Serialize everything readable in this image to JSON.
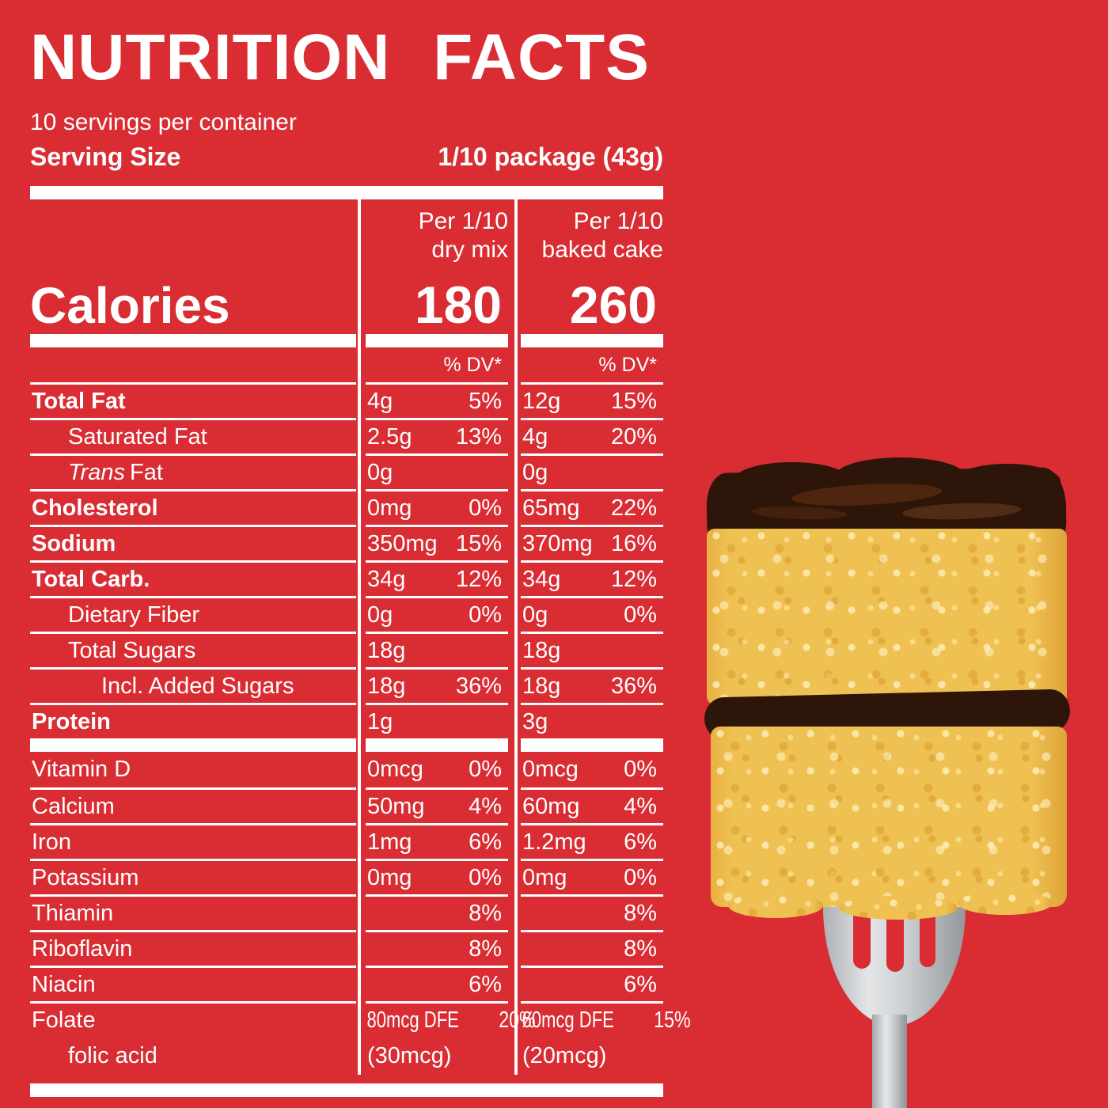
{
  "colors": {
    "background": "#d92d33",
    "text": "#ffffff",
    "sponge": "#efc052",
    "frosting": "#2d150a",
    "fork": "#c9ccce"
  },
  "header": {
    "title": "NUTRITION FACTS",
    "servings_per_container": "10 servings per container",
    "serving_size_label": "Serving Size",
    "serving_size_value": "1/10 package (43g)"
  },
  "table": {
    "calories_label": "Calories",
    "columns": [
      {
        "header_line1": "Per 1/10",
        "header_line2": "dry mix",
        "calories": "180",
        "dv_header": "% DV*"
      },
      {
        "header_line1": "Per 1/10",
        "header_line2": "baked cake",
        "calories": "260",
        "dv_header": "% DV*"
      }
    ],
    "rows": [
      {
        "label": "Total Fat",
        "bold": true,
        "indent": 0,
        "cells": [
          {
            "amount": "4g",
            "dv": "5%"
          },
          {
            "amount": "12g",
            "dv": "15%"
          }
        ]
      },
      {
        "label": "Saturated Fat",
        "bold": false,
        "indent": 1,
        "cells": [
          {
            "amount": "2.5g",
            "dv": "13%"
          },
          {
            "amount": "4g",
            "dv": "20%"
          }
        ]
      },
      {
        "label": " Fat",
        "italic_prefix": "Trans",
        "bold": false,
        "indent": 1,
        "cells": [
          {
            "amount": "0g",
            "dv": ""
          },
          {
            "amount": "0g",
            "dv": ""
          }
        ]
      },
      {
        "label": "Cholesterol",
        "bold": true,
        "indent": 0,
        "cells": [
          {
            "amount": "0mg",
            "dv": "0%"
          },
          {
            "amount": "65mg",
            "dv": "22%"
          }
        ]
      },
      {
        "label": "Sodium",
        "bold": true,
        "indent": 0,
        "cells": [
          {
            "amount": "350mg",
            "dv": "15%"
          },
          {
            "amount": "370mg",
            "dv": "16%"
          }
        ]
      },
      {
        "label": "Total Carb.",
        "bold": true,
        "indent": 0,
        "cells": [
          {
            "amount": "34g",
            "dv": "12%"
          },
          {
            "amount": "34g",
            "dv": "12%"
          }
        ]
      },
      {
        "label": "Dietary Fiber",
        "bold": false,
        "indent": 1,
        "cells": [
          {
            "amount": "0g",
            "dv": "0%"
          },
          {
            "amount": "0g",
            "dv": "0%"
          }
        ]
      },
      {
        "label": "Total Sugars",
        "bold": false,
        "indent": 1,
        "cells": [
          {
            "amount": "18g",
            "dv": ""
          },
          {
            "amount": "18g",
            "dv": ""
          }
        ]
      },
      {
        "label": "Incl. Added Sugars",
        "bold": false,
        "indent": 2,
        "cells": [
          {
            "amount": "18g",
            "dv": "36%"
          },
          {
            "amount": "18g",
            "dv": "36%"
          }
        ]
      },
      {
        "label": "Protein",
        "bold": true,
        "indent": 0,
        "bar_after": true,
        "cells": [
          {
            "amount": "1g",
            "dv": ""
          },
          {
            "amount": "3g",
            "dv": ""
          }
        ]
      },
      {
        "label": "Vitamin D",
        "bold": false,
        "indent": 0,
        "no_line": true,
        "cells": [
          {
            "amount": "0mcg",
            "dv": "0%"
          },
          {
            "amount": "0mcg",
            "dv": "0%"
          }
        ]
      },
      {
        "label": "Calcium",
        "bold": false,
        "indent": 0,
        "cells": [
          {
            "amount": "50mg",
            "dv": "4%"
          },
          {
            "amount": "60mg",
            "dv": "4%"
          }
        ]
      },
      {
        "label": "Iron",
        "bold": false,
        "indent": 0,
        "cells": [
          {
            "amount": "1mg",
            "dv": "6%"
          },
          {
            "amount": "1.2mg",
            "dv": "6%"
          }
        ]
      },
      {
        "label": "Potassium",
        "bold": false,
        "indent": 0,
        "cells": [
          {
            "amount": "0mg",
            "dv": "0%"
          },
          {
            "amount": "0mg",
            "dv": "0%"
          }
        ]
      },
      {
        "label": "Thiamin",
        "bold": false,
        "indent": 0,
        "cells": [
          {
            "amount": "",
            "dv": "8%"
          },
          {
            "amount": "",
            "dv": "8%"
          }
        ]
      },
      {
        "label": "Riboflavin",
        "bold": false,
        "indent": 0,
        "cells": [
          {
            "amount": "",
            "dv": "8%"
          },
          {
            "amount": "",
            "dv": "8%"
          }
        ]
      },
      {
        "label": "Niacin",
        "bold": false,
        "indent": 0,
        "cells": [
          {
            "amount": "",
            "dv": "6%"
          },
          {
            "amount": "",
            "dv": "6%"
          }
        ]
      },
      {
        "label": "Folate",
        "bold": false,
        "indent": 0,
        "condensed": true,
        "cells": [
          {
            "amount": "80mcg DFE",
            "dv": "20%"
          },
          {
            "amount": "60mcg DFE",
            "dv": "15%"
          }
        ]
      },
      {
        "label": "folic acid",
        "bold": false,
        "indent": 1,
        "no_line": true,
        "tall": true,
        "cells": [
          {
            "amount": "(30mcg)",
            "dv": ""
          },
          {
            "amount": "(20mcg)",
            "dv": ""
          }
        ]
      }
    ]
  },
  "illustration": {
    "name": "yellow layer cake piece with chocolate frosting held on a fork"
  }
}
